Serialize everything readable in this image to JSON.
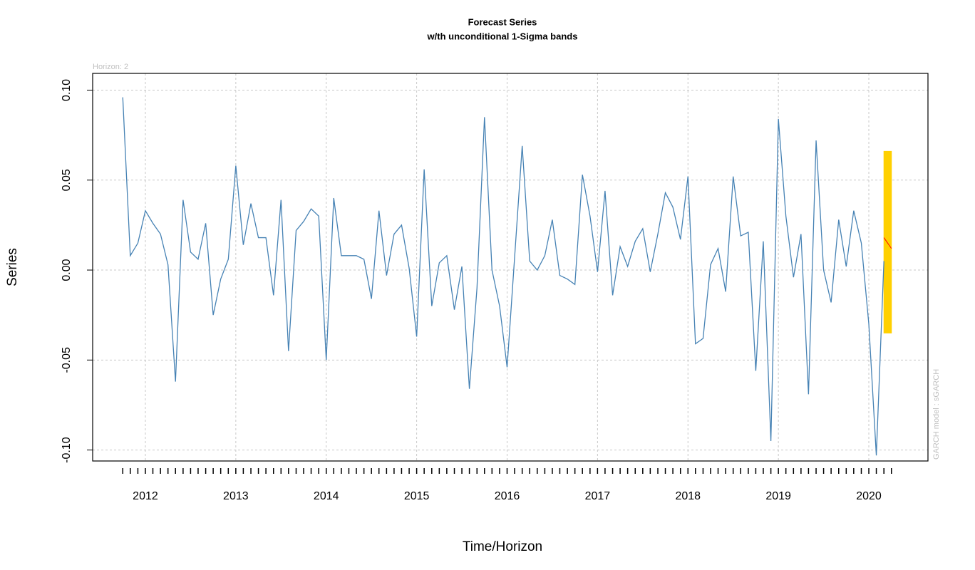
{
  "chart_data": {
    "type": "line",
    "title": "Forecast Series",
    "subtitle": "w/th unconditional 1-Sigma bands",
    "x_label": "Time/Horizon",
    "y_label": "Series",
    "annotation_top": "Horizon: 2",
    "annotation_side": "GARCH model : sGARCH",
    "color": "#4682b4",
    "x": [
      2011.75,
      2011.833,
      2011.917,
      2012,
      2012.083,
      2012.167,
      2012.25,
      2012.333,
      2012.417,
      2012.5,
      2012.583,
      2012.667,
      2012.75,
      2012.833,
      2012.917,
      2013,
      2013.083,
      2013.167,
      2013.25,
      2013.333,
      2013.417,
      2013.5,
      2013.583,
      2013.667,
      2013.75,
      2013.833,
      2013.917,
      2014,
      2014.083,
      2014.167,
      2014.25,
      2014.333,
      2014.417,
      2014.5,
      2014.583,
      2014.667,
      2014.75,
      2014.833,
      2014.917,
      2015,
      2015.083,
      2015.167,
      2015.25,
      2015.333,
      2015.417,
      2015.5,
      2015.583,
      2015.667,
      2015.75,
      2015.833,
      2015.917,
      2016,
      2016.083,
      2016.167,
      2016.25,
      2016.333,
      2016.417,
      2016.5,
      2016.583,
      2016.667,
      2016.75,
      2016.833,
      2016.917,
      2017,
      2017.083,
      2017.167,
      2017.25,
      2017.333,
      2017.417,
      2017.5,
      2017.583,
      2017.667,
      2017.75,
      2017.833,
      2017.917,
      2018,
      2018.083,
      2018.167,
      2018.25,
      2018.333,
      2018.417,
      2018.5,
      2018.583,
      2018.667,
      2018.75,
      2018.833,
      2018.917,
      2019,
      2019.083,
      2019.167,
      2019.25,
      2019.333,
      2019.417,
      2019.5,
      2019.583,
      2019.667,
      2019.75,
      2019.833,
      2019.917,
      2020,
      2020.083,
      2020.167
    ],
    "values": [
      0.096,
      0.008,
      0.015,
      0.033,
      0.026,
      0.02,
      0.003,
      -0.062,
      0.039,
      0.01,
      0.006,
      0.026,
      -0.025,
      -0.005,
      0.006,
      0.058,
      0.014,
      0.037,
      0.018,
      0.018,
      -0.014,
      0.039,
      -0.045,
      0.022,
      0.027,
      0.034,
      0.03,
      -0.05,
      0.04,
      0.008,
      0.008,
      0.008,
      0.006,
      -0.016,
      0.033,
      -0.003,
      0.02,
      0.025,
      0.001,
      -0.037,
      0.056,
      -0.02,
      0.004,
      0.008,
      -0.022,
      0.002,
      -0.066,
      -0.01,
      0.085,
      0.0,
      -0.02,
      -0.054,
      0.007,
      0.069,
      0.005,
      0.0,
      0.008,
      0.028,
      -0.003,
      -0.005,
      -0.008,
      0.053,
      0.03,
      -0.001,
      0.044,
      -0.014,
      0.013,
      0.002,
      0.016,
      0.023,
      -0.001,
      0.02,
      0.043,
      0.035,
      0.017,
      0.052,
      -0.041,
      -0.038,
      0.003,
      0.012,
      -0.012,
      0.052,
      0.019,
      0.021,
      -0.056,
      0.016,
      -0.095,
      0.084,
      0.03,
      -0.004,
      0.02,
      -0.069,
      0.072,
      0.0,
      -0.018,
      0.028,
      0.002,
      0.033,
      0.015,
      -0.03,
      -0.103,
      0.005
    ],
    "forecast": {
      "x": [
        2020.167,
        2020.25
      ],
      "values": [
        0.018,
        0.012
      ],
      "upper": [
        0.066,
        0.066
      ],
      "lower": [
        -0.035,
        -0.035
      ],
      "color": "#ff0000",
      "band_color": "#ffd000"
    },
    "xlim": [
      2011.417,
      2020.654
    ],
    "xticks": [
      2012,
      2013,
      2014,
      2015,
      2016,
      2017,
      2018,
      2019,
      2020
    ],
    "ylim": [
      -0.1061,
      0.1093
    ],
    "yticks": [
      {
        "value": -0.1,
        "label": "-0.10"
      },
      -0.05,
      {
        "value": 0,
        "label": "0.00"
      },
      0.05,
      {
        "value": 0.1,
        "label": "0.10"
      }
    ],
    "grid": true
  }
}
